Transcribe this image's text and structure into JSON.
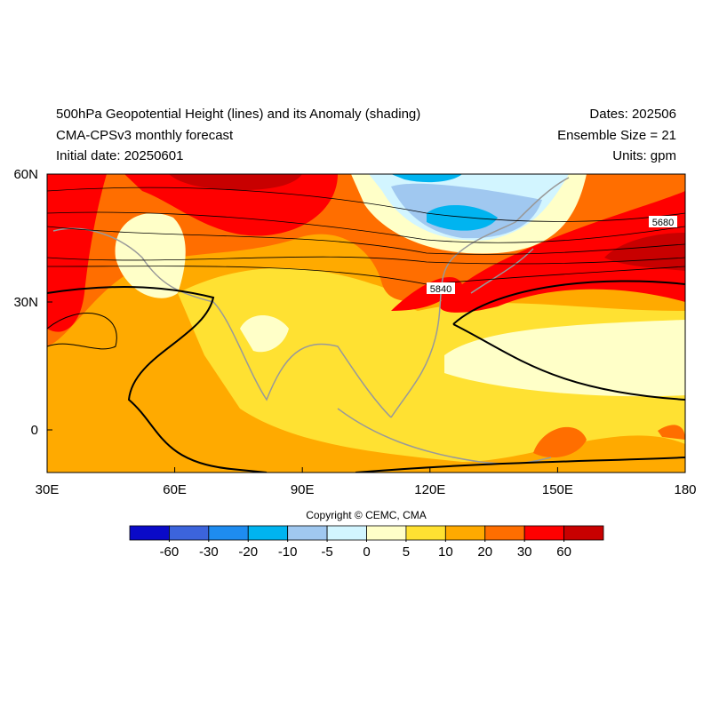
{
  "header": {
    "title": "500hPa Geopotential Height (lines) and its Anomaly (shading)",
    "subtitle": "CMA-CPSv3 monthly forecast",
    "initial_date": "Initial date: 20250601",
    "dates": "Dates: 202506",
    "ensemble": "Ensemble Size = 21",
    "units": "Units: gpm"
  },
  "map": {
    "xlim": [
      30,
      180
    ],
    "ylim": [
      -10,
      60
    ],
    "xticks": [
      {
        "value": 30,
        "label": "30E"
      },
      {
        "value": 60,
        "label": "60E"
      },
      {
        "value": 90,
        "label": "90E"
      },
      {
        "value": 120,
        "label": "120E"
      },
      {
        "value": 150,
        "label": "150E"
      },
      {
        "value": 180,
        "label": "180"
      }
    ],
    "yticks": [
      {
        "value": 60,
        "label": "60N"
      },
      {
        "value": 30,
        "label": "30N"
      },
      0
    ],
    "contour_labels": [
      5680,
      5840
    ]
  },
  "copyright": "Copyright © CEMC, CMA",
  "colorbar": {
    "levels": [
      -60,
      -30,
      -20,
      -10,
      -5,
      0,
      5,
      10,
      20,
      30,
      60
    ],
    "colors": [
      "#0a0ac8",
      "#3c64dc",
      "#1e8cf0",
      "#00b4f0",
      "#a0c8f0",
      "#d2f5ff",
      "#ffffc8",
      "#ffe132",
      "#ffaa00",
      "#ff6e00",
      "#ff0000",
      "#c80000"
    ]
  }
}
